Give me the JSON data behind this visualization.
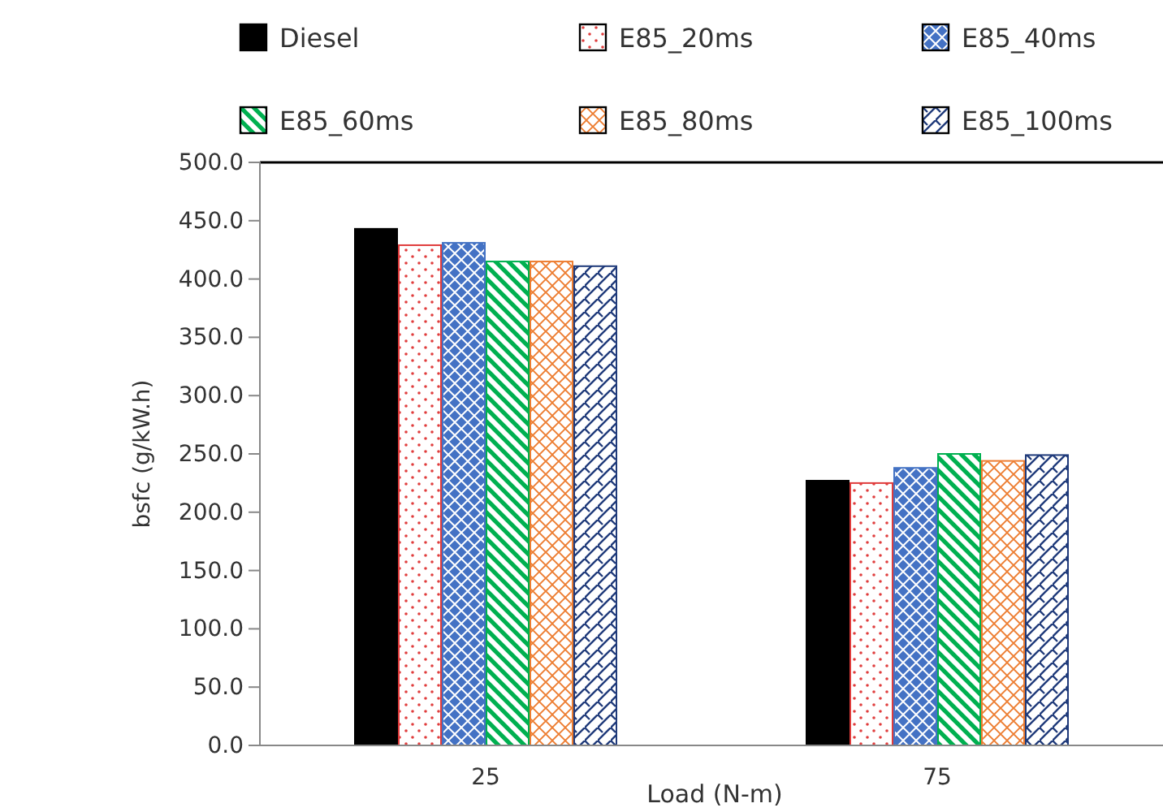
{
  "chart_data": {
    "type": "bar",
    "xlabel": "Load (N-m)",
    "ylabel": "bsfc (g/kW.h)",
    "categories": [
      "25",
      "75"
    ],
    "series": [
      {
        "name": "Diesel",
        "color": "#000000",
        "values": [
          443,
          227
        ]
      },
      {
        "name": "E85_20ms",
        "color": "#e03c3c",
        "values": [
          429,
          225
        ]
      },
      {
        "name": "E85_40ms",
        "color": "#4472c4",
        "values": [
          431,
          238
        ]
      },
      {
        "name": "E85_60ms",
        "color": "#00b050",
        "values": [
          415,
          250
        ]
      },
      {
        "name": "E85_80ms",
        "color": "#ed7d31",
        "values": [
          415,
          244
        ]
      },
      {
        "name": "E85_100ms",
        "color": "#1f3a7a",
        "values": [
          411,
          249
        ]
      }
    ],
    "ylim": [
      0,
      500
    ],
    "yticks": [
      {
        "value": 0,
        "label": "0.0"
      },
      {
        "value": 50,
        "label": "50.0"
      },
      {
        "value": 100,
        "label": "100.0"
      },
      {
        "value": 150,
        "label": "150.0"
      },
      {
        "value": 200,
        "label": "200.0"
      },
      {
        "value": 250,
        "label": "250.0"
      },
      {
        "value": 300,
        "label": "300.0"
      },
      {
        "value": 350,
        "label": "350.0"
      },
      {
        "value": 400,
        "label": "400.0"
      },
      {
        "value": 450,
        "label": "450.0"
      },
      {
        "value": 500,
        "label": "500.0"
      }
    ],
    "grid": false,
    "legend": "top"
  }
}
